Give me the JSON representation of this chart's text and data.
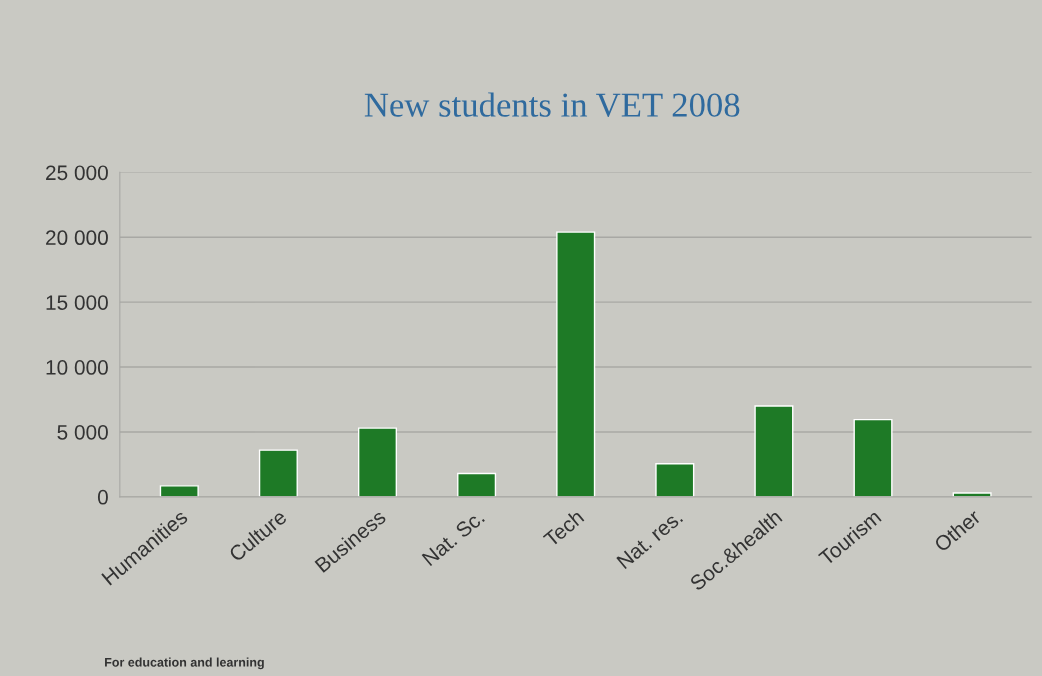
{
  "chart_data": {
    "type": "bar",
    "title": "New students in VET 2008",
    "categories": [
      "Humanities",
      "Culture",
      "Business",
      "Nat. Sc.",
      "Tech",
      "Nat. res.",
      "Soc.&health",
      "Tourism",
      "Other"
    ],
    "values": [
      850,
      3600,
      5300,
      1800,
      20400,
      2550,
      7000,
      5950,
      300
    ],
    "color": "#1e7a26",
    "ylim": [
      0,
      25000
    ],
    "yticks": [
      {
        "value": 0,
        "label": "0"
      },
      {
        "value": 5000,
        "label": "5 000"
      },
      {
        "value": 10000,
        "label": "10 000"
      },
      {
        "value": 15000,
        "label": "15 000"
      },
      {
        "value": 20000,
        "label": "20 000"
      },
      {
        "value": 25000,
        "label": "25 000"
      }
    ],
    "grid": "y",
    "annotations": [
      "For education and learning"
    ]
  }
}
